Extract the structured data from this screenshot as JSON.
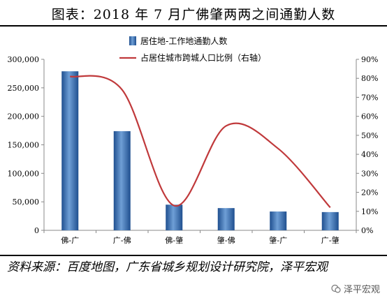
{
  "title": "图表：2018 年 7 月广佛肇两两之间通勤人数",
  "source": "资料来源：百度地图，广东省城乡规划设计研究院，泽平宏观",
  "watermark": "泽平宏观",
  "colors": {
    "bar": "#3a6fb0",
    "line": "#c0393b",
    "rule": "#000000"
  },
  "chart_data": {
    "type": "bar",
    "categories": [
      "佛-广",
      "广-佛",
      "佛-肇",
      "肇-佛",
      "肇-广",
      "广-肇"
    ],
    "series": [
      {
        "name": "居住地-工作地通勤人数",
        "type": "bar",
        "axis": "left",
        "values": [
          279000,
          174000,
          45000,
          39000,
          33000,
          32000
        ]
      },
      {
        "name": "占居住城市跨城人口比例（右轴）",
        "type": "line",
        "axis": "right",
        "values": [
          81,
          74,
          13,
          55,
          43,
          12
        ]
      }
    ],
    "ylim": [
      0,
      300000
    ],
    "y_ticks": [
      "0",
      "50,000",
      "100,000",
      "150,000",
      "200,000",
      "250,000",
      "300,000"
    ],
    "y2lim": [
      0,
      90
    ],
    "y2_ticks": [
      "0%",
      "10%",
      "20%",
      "30%",
      "40%",
      "50%",
      "60%",
      "70%",
      "80%",
      "90%"
    ],
    "legend": "top-center",
    "grid": false
  }
}
